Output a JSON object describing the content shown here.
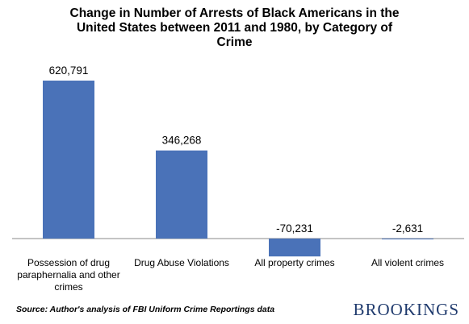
{
  "chart_data": {
    "type": "bar",
    "title": "Change in Number of Arrests of Black Americans in the\nUnited States between 2011 and 1980, by Category of\nCrime",
    "categories": [
      "Possession of drug paraphernalia and other crimes",
      "Drug Abuse Violations",
      "All property crimes",
      "All violent crimes"
    ],
    "category_lines": [
      [
        "Possession of drug",
        "paraphernalia and other",
        "crimes"
      ],
      [
        "Drug Abuse Violations"
      ],
      [
        "All property crimes"
      ],
      [
        "All violent crimes"
      ]
    ],
    "values": [
      620791,
      346268,
      -70231,
      -2631
    ],
    "value_labels": [
      "620,791",
      "346,268",
      "-70,231",
      "-2,631"
    ],
    "bar_color": "#4a72b8",
    "ylim": [
      -100000,
      700000
    ],
    "grid": false,
    "legend": "none"
  },
  "footer": {
    "source": "Source: Author's analysis of FBI Uniform Crime Reportings data",
    "brand": "BROOKINGS"
  }
}
